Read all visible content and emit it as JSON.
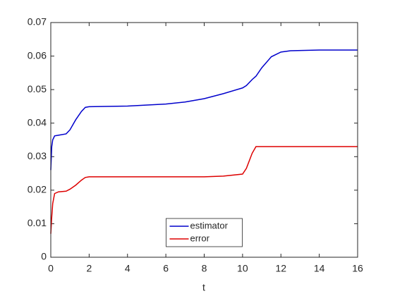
{
  "chart_data": {
    "type": "line",
    "xlabel": "t",
    "x": [
      0,
      0.05,
      0.1,
      0.2,
      0.4,
      0.8,
      1.0,
      1.3,
      1.6,
      1.8,
      2,
      4,
      6,
      7,
      8,
      9,
      10,
      10.2,
      10.5,
      10.7,
      11,
      11.5,
      12,
      12.5,
      14,
      16
    ],
    "series": [
      {
        "name": "estimator",
        "color": "#0000cc",
        "values": [
          0.026,
          0.033,
          0.035,
          0.0362,
          0.0364,
          0.0368,
          0.038,
          0.041,
          0.0435,
          0.0447,
          0.0449,
          0.0451,
          0.0457,
          0.0463,
          0.0473,
          0.0488,
          0.0505,
          0.0512,
          0.053,
          0.054,
          0.0565,
          0.0598,
          0.0612,
          0.0616,
          0.0618,
          0.0618
        ]
      },
      {
        "name": "error",
        "color": "#dd0000",
        "values": [
          0.007,
          0.012,
          0.016,
          0.019,
          0.0195,
          0.0197,
          0.0203,
          0.0215,
          0.023,
          0.0238,
          0.024,
          0.024,
          0.024,
          0.024,
          0.024,
          0.0242,
          0.0248,
          0.0265,
          0.031,
          0.033,
          0.033,
          0.033,
          0.033,
          0.033,
          0.033,
          0.033
        ]
      }
    ],
    "xlim": [
      0,
      16
    ],
    "xticks": [
      0,
      2,
      4,
      6,
      8,
      10,
      12,
      14,
      16
    ],
    "ylim": [
      0,
      0.07
    ],
    "yticks": [
      0,
      0.01,
      0.02,
      0.03,
      0.04,
      0.05,
      0.06,
      0.07
    ],
    "grid": false,
    "legend_location": "south"
  }
}
